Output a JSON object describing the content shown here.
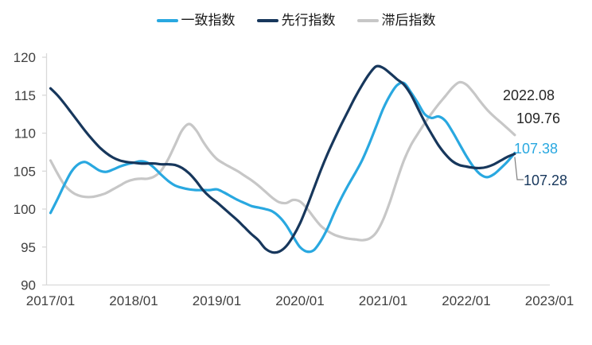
{
  "chart_data": {
    "type": "line",
    "title": "",
    "x_start": "2017/01",
    "x_end": "2022/08",
    "x_tick_labels": [
      "2017/01",
      "2018/01",
      "2019/01",
      "2020/01",
      "2021/01",
      "2022/01",
      "2023/01"
    ],
    "y_ticks": [
      120,
      115,
      110,
      105,
      100,
      95,
      90
    ],
    "ylim": [
      90,
      120
    ],
    "grid": false,
    "legend_position": "top-center",
    "axis_color": "#D9D9D9",
    "tick_label_color": "#404040",
    "series": [
      {
        "key": "coincident",
        "name": "一致指数",
        "color": "#29A8E0",
        "values": [
          99.5,
          101.3,
          103.2,
          104.9,
          105.9,
          106.2,
          105.7,
          105.1,
          104.9,
          105.2,
          105.6,
          105.9,
          106.1,
          106.3,
          106.1,
          105.4,
          104.5,
          103.7,
          103.1,
          102.8,
          102.6,
          102.5,
          102.5,
          102.5,
          102.6,
          102.2,
          101.7,
          101.2,
          100.8,
          100.4,
          100.2,
          100.0,
          99.7,
          99.0,
          97.9,
          96.4,
          95.0,
          94.4,
          94.6,
          95.8,
          97.5,
          99.6,
          101.5,
          103.2,
          104.8,
          106.5,
          108.6,
          110.9,
          113.2,
          115.0,
          116.3,
          116.6,
          115.4,
          114.0,
          112.5,
          112.0,
          112.2,
          111.6,
          110.2,
          108.6,
          107.0,
          105.6,
          104.6,
          104.2,
          104.6,
          105.4,
          106.3,
          107.38
        ]
      },
      {
        "key": "leading",
        "name": "先行指数",
        "color": "#17375C",
        "values": [
          115.9,
          115.0,
          113.9,
          112.7,
          111.5,
          110.3,
          109.2,
          108.2,
          107.4,
          106.8,
          106.4,
          106.2,
          106.1,
          106.0,
          106.0,
          106.0,
          105.9,
          105.9,
          105.8,
          105.4,
          104.7,
          103.7,
          102.5,
          101.6,
          100.9,
          100.1,
          99.3,
          98.5,
          97.6,
          96.7,
          95.9,
          94.8,
          94.3,
          94.4,
          95.1,
          96.4,
          98.1,
          100.3,
          102.7,
          105.1,
          107.3,
          109.3,
          111.2,
          113.0,
          114.8,
          116.4,
          117.8,
          118.8,
          118.6,
          117.9,
          117.1,
          116.4,
          115.1,
          113.3,
          111.5,
          109.9,
          108.4,
          107.2,
          106.3,
          105.8,
          105.6,
          105.45,
          105.4,
          105.55,
          105.9,
          106.4,
          106.9,
          107.28
        ]
      },
      {
        "key": "lagging",
        "name": "滞后指数",
        "color": "#C7C7C7",
        "values": [
          106.4,
          104.7,
          103.2,
          102.3,
          101.8,
          101.6,
          101.6,
          101.8,
          102.1,
          102.6,
          103.1,
          103.6,
          103.9,
          104.0,
          104.0,
          104.3,
          105.1,
          106.6,
          108.5,
          110.4,
          111.2,
          110.4,
          108.9,
          107.6,
          106.6,
          106.0,
          105.5,
          105.0,
          104.4,
          103.8,
          103.1,
          102.3,
          101.5,
          100.9,
          100.8,
          101.2,
          101.0,
          100.1,
          98.9,
          97.8,
          97.1,
          96.6,
          96.3,
          96.1,
          96.0,
          95.9,
          96.1,
          96.9,
          98.6,
          101.0,
          103.8,
          106.4,
          108.4,
          109.9,
          111.3,
          112.6,
          113.8,
          114.9,
          116.0,
          116.7,
          116.4,
          115.4,
          114.2,
          113.1,
          112.2,
          111.4,
          110.6,
          109.76
        ]
      }
    ],
    "annotations": {
      "date_label": "2022.08",
      "lagging_value": "109.76",
      "coincident_value": "107.38",
      "leading_value": "107.28"
    }
  }
}
